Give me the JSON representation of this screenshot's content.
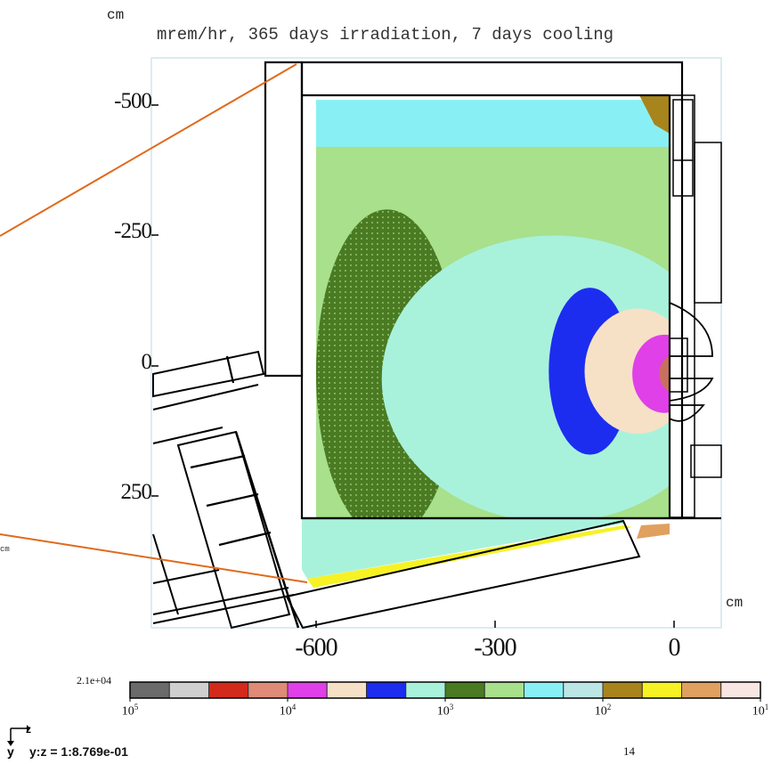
{
  "labels": {
    "unit_top": "cm",
    "title": "mrem/hr, 365 days irradiation, 7 days cooling",
    "unit_right": "cm",
    "unit_left": "cm",
    "scale": "y:z = 1:8.769e-01",
    "axis_z": "z",
    "axis_y": "y",
    "page": "14"
  },
  "chart_data": {
    "type": "heatmap",
    "title": "mrem/hr, 365 days irradiation, 7 days cooling",
    "xlabel": "cm",
    "ylabel": "cm",
    "x_ticks": [
      "-600",
      "-300",
      "0"
    ],
    "y_ticks": [
      "-500",
      "-250",
      "0",
      "250"
    ],
    "xlim": [
      -800,
      75
    ],
    "ylim": [
      -580,
      450
    ],
    "colorbar": {
      "max_label": "2.1e+04",
      "scale": "log",
      "tick_labels": [
        {
          "base": "10",
          "exp": "5",
          "value": 100000
        },
        {
          "base": "10",
          "exp": "4",
          "value": 10000
        },
        {
          "base": "10",
          "exp": "3",
          "value": 1000
        },
        {
          "base": "10",
          "exp": "2",
          "value": 100
        },
        {
          "base": "10",
          "exp": "1",
          "value": 10
        }
      ],
      "colors": [
        "#6b6b6b",
        "#cfcfcf",
        "#d42a1c",
        "#e08a78",
        "#e040e8",
        "#f6e1c6",
        "#1c2df0",
        "#a8f2dc",
        "#4a7a22",
        "#a8e08c",
        "#88f0f4",
        "#bce6e6",
        "#a8841c",
        "#f6f224",
        "#e0a060",
        "#f8e6e2"
      ]
    },
    "dose_regions": [
      {
        "level_color": "#c87060",
        "z_from": -25,
        "z_to": 0,
        "y_from": -25,
        "y_to": 55
      },
      {
        "level_color": "#e040e8",
        "z_from": -70,
        "z_to": -25,
        "y_from": -60,
        "y_to": 90
      },
      {
        "level_color": "#f6e1c6",
        "z_from": -150,
        "z_to": -70,
        "y_from": -110,
        "y_to": 130
      },
      {
        "level_color": "#1c2df0",
        "z_from": -210,
        "z_to": -150,
        "y_from": -150,
        "y_to": 170
      },
      {
        "level_color": "#a8f2dc",
        "z_from": -490,
        "z_to": -210,
        "y_from": -250,
        "y_to": 300
      },
      {
        "level_color": "#4a7a22",
        "z_from": -600,
        "z_to": -490,
        "y_from": -300,
        "y_to": 330
      },
      {
        "level_color": "#a8e08c",
        "z_from": -600,
        "z_to": 0,
        "y_from": -420,
        "y_to": 420
      },
      {
        "level_color": "#88f0f4",
        "z_from": -600,
        "z_to": 0,
        "y_from": -510,
        "y_to": 430
      }
    ]
  },
  "colors": {
    "leader_line": "#e06a1c",
    "frame": "#cfe6ee"
  }
}
